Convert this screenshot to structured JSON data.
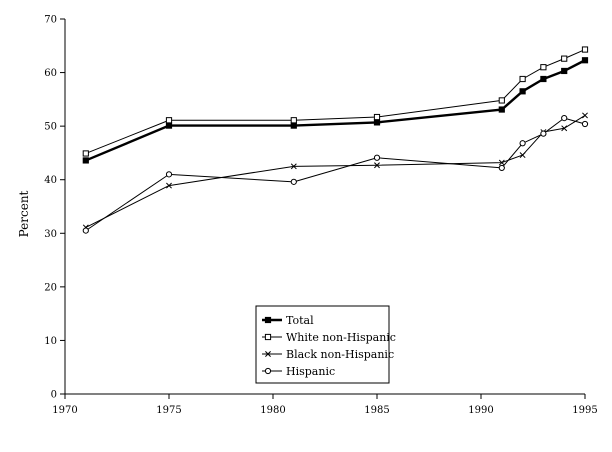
{
  "chart_data": {
    "type": "line",
    "title": "",
    "xlabel": "",
    "ylabel": "Percent",
    "xlim": [
      1970,
      1995
    ],
    "ylim": [
      0,
      70
    ],
    "x_ticks": [
      1970,
      1975,
      1980,
      1985,
      1990,
      1995
    ],
    "y_ticks": [
      0,
      10,
      20,
      30,
      40,
      50,
      60,
      70
    ],
    "grid": false,
    "legend_position": "bottom-center",
    "series": [
      {
        "name": "Total",
        "marker": "filled-square",
        "x": [
          1971,
          1975,
          1981,
          1985,
          1991,
          1992,
          1993,
          1994,
          1995
        ],
        "y": [
          43.6,
          50.1,
          50.1,
          50.7,
          53.1,
          56.5,
          58.8,
          60.3,
          62.3
        ]
      },
      {
        "name": "White non-Hispanic",
        "marker": "open-square",
        "x": [
          1971,
          1975,
          1981,
          1985,
          1991,
          1992,
          1993,
          1994,
          1995
        ],
        "y": [
          44.9,
          51.1,
          51.1,
          51.7,
          54.8,
          58.8,
          61.0,
          62.6,
          64.3
        ]
      },
      {
        "name": "Black non-Hispanic",
        "marker": "x",
        "x": [
          1971,
          1975,
          1981,
          1985,
          1991,
          1992,
          1993,
          1994,
          1995
        ],
        "y": [
          31.1,
          38.9,
          42.5,
          42.7,
          43.2,
          44.6,
          48.9,
          49.6,
          52.0
        ]
      },
      {
        "name": "Hispanic",
        "marker": "open-circle",
        "x": [
          1971,
          1975,
          1981,
          1985,
          1991,
          1992,
          1993,
          1994,
          1995
        ],
        "y": [
          30.5,
          41.0,
          39.6,
          44.1,
          42.2,
          46.8,
          48.6,
          51.5,
          50.4
        ]
      }
    ]
  }
}
